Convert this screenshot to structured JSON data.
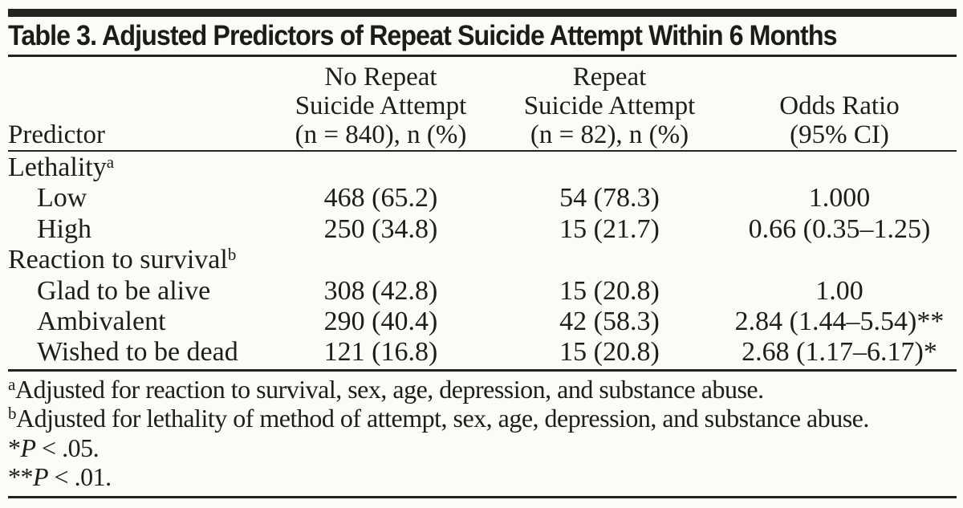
{
  "colors": {
    "background": "#fbfcf8",
    "ink": "#1d1d1b",
    "rule": "#232321"
  },
  "table": {
    "title": "Table 3. Adjusted Predictors of Repeat Suicide Attempt Within 6 Months",
    "header": {
      "col1": {
        "line1": "",
        "line2": "",
        "line3": "Predictor"
      },
      "col2": {
        "line1": "No Repeat",
        "line2": "Suicide Attempt",
        "line3": "(n = 840), n (%)"
      },
      "col3": {
        "line1": "Repeat",
        "line2": "Suicide Attempt",
        "line3": "(n = 82), n (%)"
      },
      "col4": {
        "line1": "",
        "line2": "Odds Ratio",
        "line3": "(95% CI)"
      }
    },
    "rows": [
      {
        "label": "Lethality",
        "sup": "a",
        "no_repeat": "",
        "repeat": "",
        "odds_ratio": ""
      },
      {
        "label": "Low",
        "sup": "",
        "no_repeat": "468 (65.2)",
        "repeat": "54 (78.3)",
        "odds_ratio": "1.000"
      },
      {
        "label": "High",
        "sup": "",
        "no_repeat": "250 (34.8)",
        "repeat": "15 (21.7)",
        "odds_ratio": "0.66 (0.35–1.25)"
      },
      {
        "label": "Reaction to survival",
        "sup": "b",
        "no_repeat": "",
        "repeat": "",
        "odds_ratio": ""
      },
      {
        "label": "Glad to be alive",
        "sup": "",
        "no_repeat": "308 (42.8)",
        "repeat": "15 (20.8)",
        "odds_ratio": "1.00"
      },
      {
        "label": "Ambivalent",
        "sup": "",
        "no_repeat": "290 (40.4)",
        "repeat": "42 (58.3)",
        "odds_ratio": "2.84 (1.44–5.54)**"
      },
      {
        "label": "Wished to be dead",
        "sup": "",
        "no_repeat": "121 (16.8)",
        "repeat": "15 (20.8)",
        "odds_ratio": "2.68 (1.17–6.17)*"
      }
    ],
    "footnotes": [
      {
        "sup": "a",
        "star": "",
        "p": "",
        "text": "Adjusted for reaction to survival, sex, age, depression, and substance abuse."
      },
      {
        "sup": "b",
        "star": "",
        "p": "",
        "text": "Adjusted for lethality of method of attempt, sex, age, depression, and substance abuse."
      },
      {
        "sup": "",
        "star": "*",
        "p": "P",
        "text": " < .05."
      },
      {
        "sup": "",
        "star": "**",
        "p": "P",
        "text": " < .01."
      }
    ]
  }
}
